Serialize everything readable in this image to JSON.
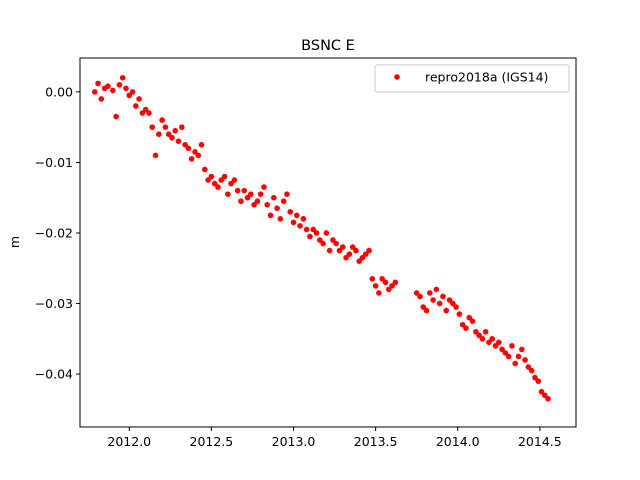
{
  "chart_data": {
    "type": "scatter",
    "title": "BSNC E",
    "xlabel": "",
    "ylabel": "m",
    "xlim": [
      2011.7,
      2014.72
    ],
    "ylim": [
      -0.0475,
      0.0048
    ],
    "xticks": [
      2012.0,
      2012.5,
      2013.0,
      2013.5,
      2014.0,
      2014.5
    ],
    "xtick_labels": [
      "2012.0",
      "2012.5",
      "2013.0",
      "2013.5",
      "2014.0",
      "2014.5"
    ],
    "yticks": [
      0.0,
      -0.01,
      -0.02,
      -0.03,
      -0.04
    ],
    "ytick_labels": [
      "0.00",
      "−0.01",
      "−0.02",
      "−0.03",
      "−0.04"
    ],
    "grid": false,
    "legend_position": "top-right",
    "series": [
      {
        "name": "repro2018a (IGS14)",
        "color": "#ff0000",
        "marker": "circle",
        "x": [
          2011.79,
          2011.81,
          2011.83,
          2011.85,
          2011.87,
          2011.9,
          2011.92,
          2011.94,
          2011.96,
          2011.98,
          2012.0,
          2012.02,
          2012.04,
          2012.06,
          2012.08,
          2012.1,
          2012.12,
          2012.14,
          2012.16,
          2012.18,
          2012.2,
          2012.22,
          2012.24,
          2012.26,
          2012.28,
          2012.3,
          2012.32,
          2012.34,
          2012.36,
          2012.38,
          2012.4,
          2012.42,
          2012.44,
          2012.46,
          2012.48,
          2012.5,
          2012.52,
          2012.54,
          2012.56,
          2012.58,
          2012.6,
          2012.62,
          2012.64,
          2012.66,
          2012.68,
          2012.7,
          2012.72,
          2012.74,
          2012.76,
          2012.78,
          2012.8,
          2012.82,
          2012.84,
          2012.86,
          2012.88,
          2012.9,
          2012.92,
          2012.94,
          2012.96,
          2012.98,
          2013.0,
          2013.02,
          2013.04,
          2013.06,
          2013.08,
          2013.1,
          2013.12,
          2013.14,
          2013.16,
          2013.18,
          2013.2,
          2013.22,
          2013.24,
          2013.26,
          2013.28,
          2013.3,
          2013.32,
          2013.34,
          2013.36,
          2013.38,
          2013.4,
          2013.42,
          2013.44,
          2013.46,
          2013.48,
          2013.5,
          2013.52,
          2013.54,
          2013.56,
          2013.58,
          2013.6,
          2013.62,
          2013.75,
          2013.77,
          2013.79,
          2013.81,
          2013.83,
          2013.85,
          2013.87,
          2013.89,
          2013.91,
          2013.93,
          2013.95,
          2013.97,
          2013.99,
          2014.01,
          2014.03,
          2014.05,
          2014.07,
          2014.09,
          2014.11,
          2014.13,
          2014.15,
          2014.17,
          2014.19,
          2014.21,
          2014.23,
          2014.25,
          2014.27,
          2014.29,
          2014.31,
          2014.33,
          2014.35,
          2014.37,
          2014.39,
          2014.41,
          2014.43,
          2014.45,
          2014.47,
          2014.49,
          2014.51,
          2014.53,
          2014.55
        ],
        "y": [
          0.0,
          0.0012,
          -0.001,
          0.0005,
          0.0008,
          0.0002,
          -0.0035,
          0.001,
          0.002,
          0.0005,
          -0.0005,
          0.0,
          -0.002,
          -0.001,
          -0.003,
          -0.0025,
          -0.003,
          -0.005,
          -0.009,
          -0.006,
          -0.004,
          -0.005,
          -0.006,
          -0.0065,
          -0.0055,
          -0.007,
          -0.005,
          -0.0075,
          -0.008,
          -0.0095,
          -0.0085,
          -0.009,
          -0.0075,
          -0.011,
          -0.0125,
          -0.012,
          -0.013,
          -0.0135,
          -0.0125,
          -0.012,
          -0.0145,
          -0.013,
          -0.0125,
          -0.014,
          -0.0155,
          -0.014,
          -0.015,
          -0.0145,
          -0.016,
          -0.0155,
          -0.0145,
          -0.0135,
          -0.016,
          -0.0175,
          -0.015,
          -0.0165,
          -0.018,
          -0.0155,
          -0.0145,
          -0.017,
          -0.0185,
          -0.0175,
          -0.019,
          -0.018,
          -0.0195,
          -0.0205,
          -0.0195,
          -0.02,
          -0.021,
          -0.0215,
          -0.02,
          -0.0225,
          -0.021,
          -0.0215,
          -0.0225,
          -0.022,
          -0.0235,
          -0.023,
          -0.022,
          -0.0225,
          -0.024,
          -0.0235,
          -0.023,
          -0.0225,
          -0.0265,
          -0.0275,
          -0.0285,
          -0.0265,
          -0.027,
          -0.028,
          -0.0275,
          -0.027,
          -0.0285,
          -0.029,
          -0.0305,
          -0.031,
          -0.0285,
          -0.0295,
          -0.028,
          -0.03,
          -0.029,
          -0.031,
          -0.0295,
          -0.03,
          -0.0305,
          -0.0315,
          -0.033,
          -0.0335,
          -0.032,
          -0.0325,
          -0.034,
          -0.0345,
          -0.035,
          -0.034,
          -0.0355,
          -0.035,
          -0.036,
          -0.0355,
          -0.0365,
          -0.037,
          -0.0375,
          -0.036,
          -0.0385,
          -0.0375,
          -0.0365,
          -0.038,
          -0.039,
          -0.0395,
          -0.0405,
          -0.041,
          -0.0425,
          -0.043,
          -0.0435
        ]
      }
    ]
  }
}
